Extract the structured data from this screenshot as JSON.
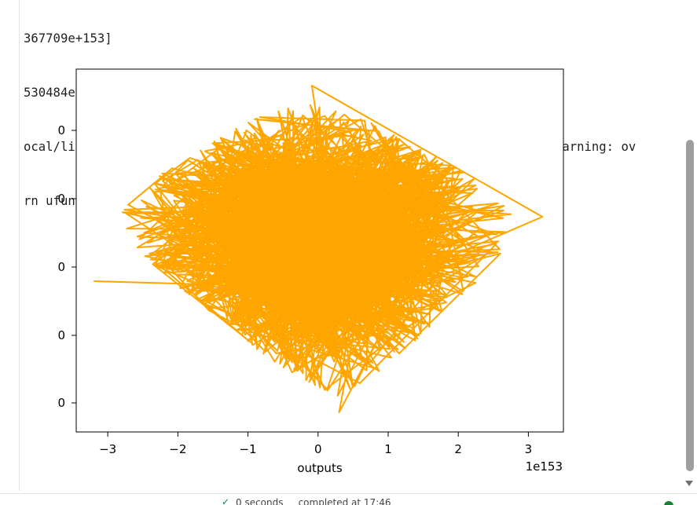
{
  "output": {
    "lines": [
      "367709e+153]",
      "530484e+153]] [3.9549465e+151]",
      "ocal/lib/python3.11/dist-packages/numpy/_core/fromnumeric.py:86: RuntimeWarning: ov",
      "rn ufunc.reduce(obj, axis, dtype, out, **passkwargs)"
    ]
  },
  "chart_data": {
    "type": "line",
    "series": [
      {
        "color": "#FFA500",
        "description_points": "dense random walk forming a diamond-shaped cloud centered near (0, mid)"
      }
    ],
    "x_ticks": [
      "−3",
      "−2",
      "−1",
      "0",
      "1",
      "2",
      "3"
    ],
    "x_tick_values": [
      -3,
      -2,
      -1,
      0,
      1,
      2,
      3
    ],
    "y_tick_labels": [
      "0",
      "0",
      "0",
      "0",
      "0"
    ],
    "xlabel": "outputs",
    "x_offset_text": "1e153",
    "xlim": [
      -3.45,
      3.5
    ],
    "diamond": {
      "left_x": -3.2,
      "right_x": 3.2,
      "top_x": -0.2,
      "bottom_x": 0.3
    }
  },
  "status": {
    "check_icon": "check-icon",
    "text": "0 seconds     completed at 17:46",
    "dot_color": "#188038"
  }
}
